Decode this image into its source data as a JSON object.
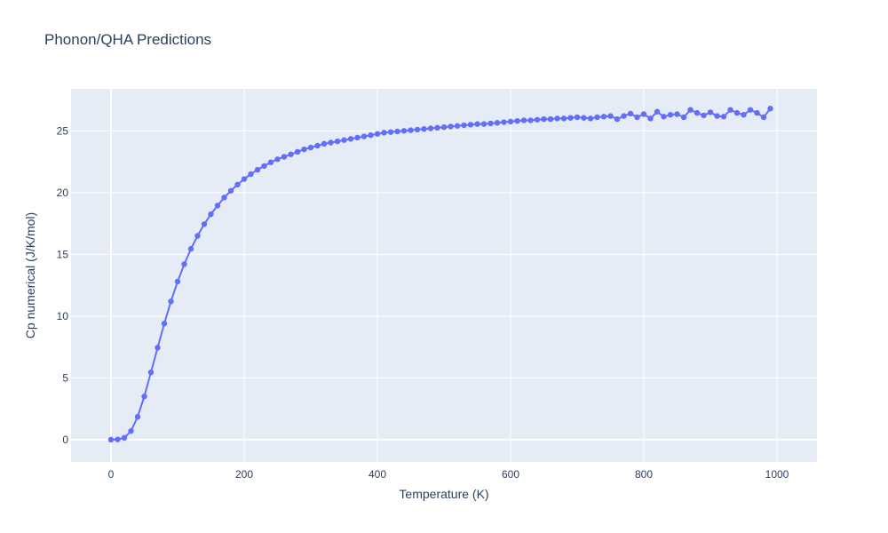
{
  "chart_data": {
    "type": "line",
    "title": "Phonon/QHA Predictions",
    "xlabel": "Temperature (K)",
    "ylabel": "Cp numerical (J/K/mol)",
    "xlim": [
      -60,
      1060
    ],
    "ylim": [
      -1.8,
      28.4
    ],
    "xticks": [
      0,
      200,
      400,
      600,
      800,
      1000
    ],
    "yticks": [
      0,
      5,
      10,
      15,
      20,
      25
    ],
    "grid": true,
    "legend": "none",
    "colors": {
      "series": "#636efa",
      "plot_bg": "#e5ecf6",
      "grid": "#ffffff",
      "text": "#2a3f5f"
    },
    "series": [
      {
        "name": "",
        "mode": "lines+markers",
        "x": [
          0,
          10,
          20,
          30,
          40,
          50,
          60,
          70,
          80,
          90,
          100,
          110,
          120,
          130,
          140,
          150,
          160,
          170,
          180,
          190,
          200,
          210,
          220,
          230,
          240,
          250,
          260,
          270,
          280,
          290,
          300,
          310,
          320,
          330,
          340,
          350,
          360,
          370,
          380,
          390,
          400,
          410,
          420,
          430,
          440,
          450,
          460,
          470,
          480,
          490,
          500,
          510,
          520,
          530,
          540,
          550,
          560,
          570,
          580,
          590,
          600,
          610,
          620,
          630,
          640,
          650,
          660,
          670,
          680,
          690,
          700,
          710,
          720,
          730,
          740,
          750,
          760,
          770,
          780,
          790,
          800,
          810,
          820,
          830,
          840,
          850,
          860,
          870,
          880,
          890,
          900,
          910,
          920,
          930,
          940,
          950,
          960,
          970,
          980,
          990
        ],
        "y": [
          0.0,
          0.02,
          0.15,
          0.7,
          1.85,
          3.5,
          5.45,
          7.45,
          9.4,
          11.2,
          12.8,
          14.2,
          15.45,
          16.5,
          17.45,
          18.25,
          18.95,
          19.6,
          20.15,
          20.65,
          21.1,
          21.5,
          21.85,
          22.15,
          22.45,
          22.7,
          22.9,
          23.1,
          23.3,
          23.5,
          23.65,
          23.8,
          23.95,
          24.05,
          24.15,
          24.25,
          24.35,
          24.45,
          24.55,
          24.65,
          24.75,
          24.85,
          24.9,
          24.95,
          25.0,
          25.05,
          25.1,
          25.15,
          25.2,
          25.25,
          25.3,
          25.35,
          25.4,
          25.45,
          25.5,
          25.55,
          25.55,
          25.6,
          25.65,
          25.7,
          25.75,
          25.8,
          25.85,
          25.85,
          25.9,
          25.95,
          25.95,
          26.0,
          26.0,
          26.05,
          26.1,
          26.05,
          26.0,
          26.1,
          26.15,
          26.2,
          25.95,
          26.2,
          26.4,
          26.1,
          26.35,
          26.0,
          26.55,
          26.15,
          26.3,
          26.35,
          26.1,
          26.7,
          26.45,
          26.25,
          26.5,
          26.2,
          26.15,
          26.7,
          26.45,
          26.3,
          26.7,
          26.45,
          26.1,
          26.8
        ]
      }
    ]
  }
}
